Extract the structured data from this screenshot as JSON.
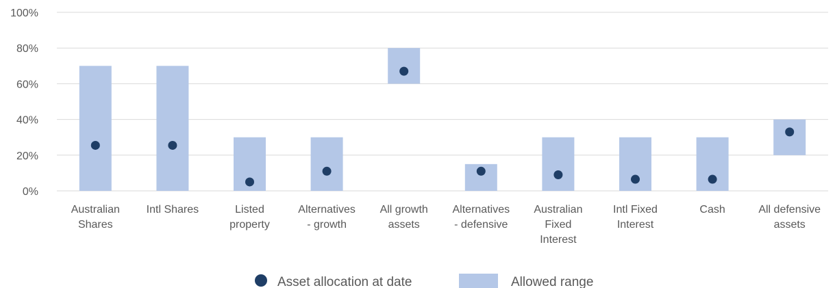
{
  "chart_data": {
    "type": "bar",
    "categories": [
      [
        "Australian",
        "Shares"
      ],
      [
        "Intl Shares"
      ],
      [
        "Listed",
        "property"
      ],
      [
        "Alternatives",
        "- growth"
      ],
      [
        "All growth",
        "assets"
      ],
      [
        "Alternatives",
        "- defensive"
      ],
      [
        "Australian",
        "Fixed",
        "Interest"
      ],
      [
        "Intl Fixed",
        "Interest"
      ],
      [
        "Cash"
      ],
      [
        "All defensive",
        "assets"
      ]
    ],
    "range_low": [
      0,
      0,
      0,
      0,
      60,
      0,
      0,
      0,
      0,
      20
    ],
    "range_high": [
      70,
      70,
      30,
      30,
      80,
      15,
      30,
      30,
      30,
      40
    ],
    "allocation": [
      25.5,
      25.5,
      5,
      11,
      67,
      11,
      9,
      6.5,
      6.5,
      33
    ],
    "y_ticks": [
      "0%",
      "20%",
      "40%",
      "60%",
      "80%",
      "100%"
    ],
    "ylim": [
      0,
      100
    ],
    "grid": true,
    "legend_position": "bottom",
    "series": [
      {
        "name": "Asset allocation at date",
        "marker": "dot"
      },
      {
        "name": "Allowed range",
        "marker": "bar"
      }
    ],
    "colors": {
      "range": "#b4c7e7",
      "dot": "#1f3e66",
      "grid": "#d9d9d9",
      "text": "#595959"
    }
  }
}
